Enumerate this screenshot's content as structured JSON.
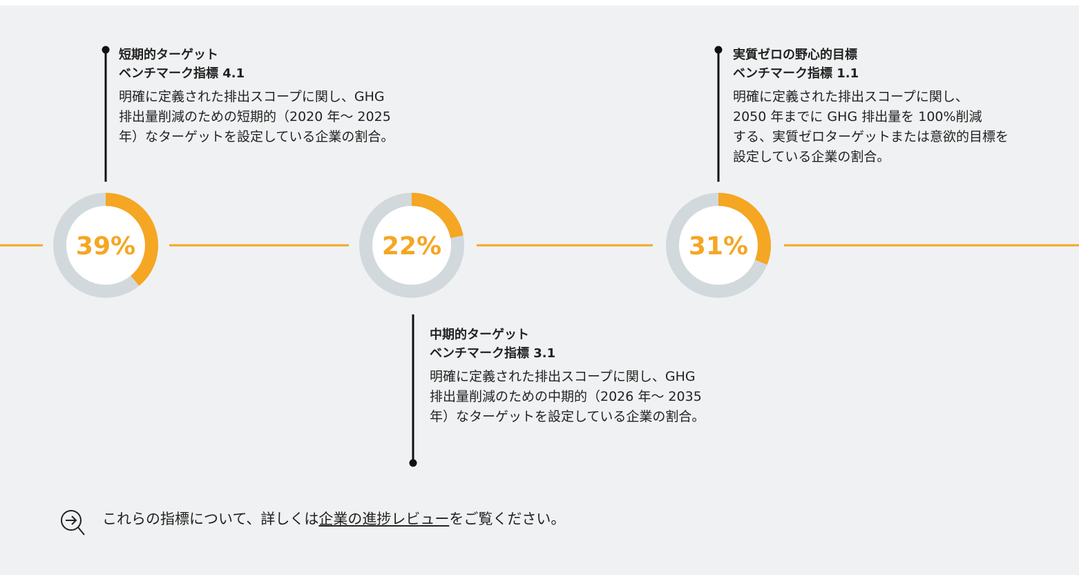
{
  "items": [
    {
      "title": "短期的ターゲット",
      "subtitle": "ベンチマーク指標 4.1",
      "description": [
        "明確に定義された排出スコープに関し、GHG",
        "排出量削減のための短期的（2020 年～ 2025",
        "年）なターゲットを設定している企業の割合。"
      ],
      "value": 39,
      "value_label": "39%",
      "color": "#f5a623"
    },
    {
      "title": "中期的ターゲット",
      "subtitle": "ベンチマーク指標 3.1",
      "description": [
        "明確に定義された排出スコープに関し、GHG",
        "排出量削減のための中期的（2026 年～ 2035",
        "年）なターゲットを設定している企業の割合。"
      ],
      "value": 22,
      "value_label": "22%",
      "color": "#f5a623"
    },
    {
      "title": "実質ゼロの野心的目標",
      "subtitle": "ベンチマーク指標 1.1",
      "description": [
        "明確に定義された排出スコープに関し、",
        "2050 年までに GHG 排出量を 100%削減",
        "する、実質ゼロターゲットまたは意欲的目標を",
        "設定している企業の割合。"
      ],
      "value": 31,
      "value_label": "31%",
      "color": "#f5a623"
    }
  ],
  "footer": {
    "before": "これらの指標について、詳しくは",
    "link": "企業の進捗レビュー",
    "after": "をご覧ください。"
  }
}
